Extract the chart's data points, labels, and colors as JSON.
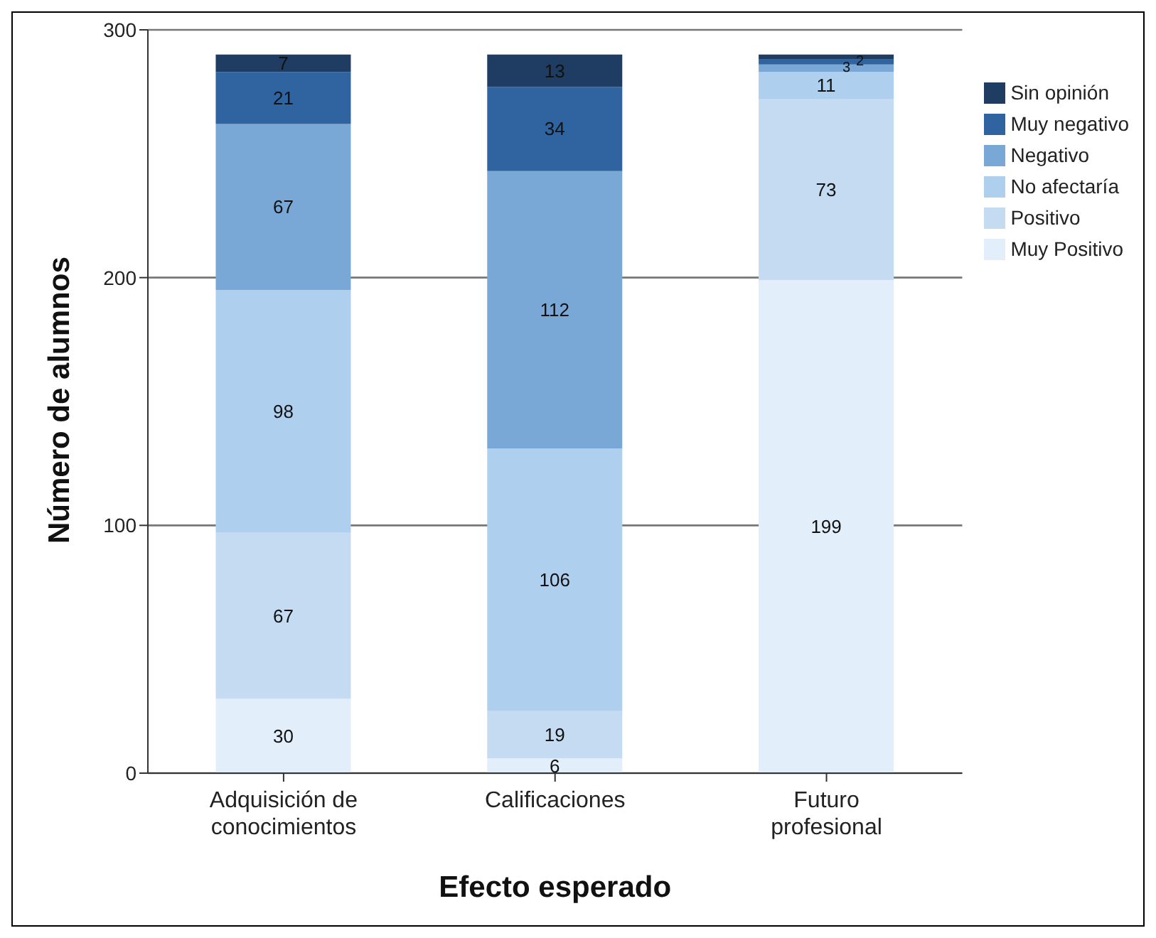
{
  "chart_data": {
    "type": "bar",
    "stacked": true,
    "xlabel": "Efecto esperado",
    "ylabel": "Número de alumnos",
    "categories": [
      "Adquisición de conocimientos",
      "Calificaciones",
      "Futuro profesional"
    ],
    "series": [
      {
        "name": "Muy Positivo",
        "color": "#e3eefb",
        "values": [
          30,
          6,
          199
        ]
      },
      {
        "name": "Positivo",
        "color": "#c5dbf2",
        "values": [
          67,
          19,
          73
        ]
      },
      {
        "name": "No afectaría",
        "color": "#aecfee",
        "values": [
          98,
          106,
          11
        ]
      },
      {
        "name": "Negativo",
        "color": "#7aa8d6",
        "values": [
          67,
          112,
          3
        ]
      },
      {
        "name": "Muy negativo",
        "color": "#2f64a0",
        "values": [
          21,
          34,
          2
        ]
      },
      {
        "name": "Sin opinión",
        "color": "#1f3d63",
        "values": [
          7,
          13,
          2
        ],
        "value_labels": [
          "7",
          "13",
          null
        ]
      }
    ],
    "data_labels": true,
    "ylim": [
      0,
      300
    ],
    "yticks": [
      0,
      100,
      200,
      300
    ],
    "grid": "y",
    "legend": "right"
  }
}
